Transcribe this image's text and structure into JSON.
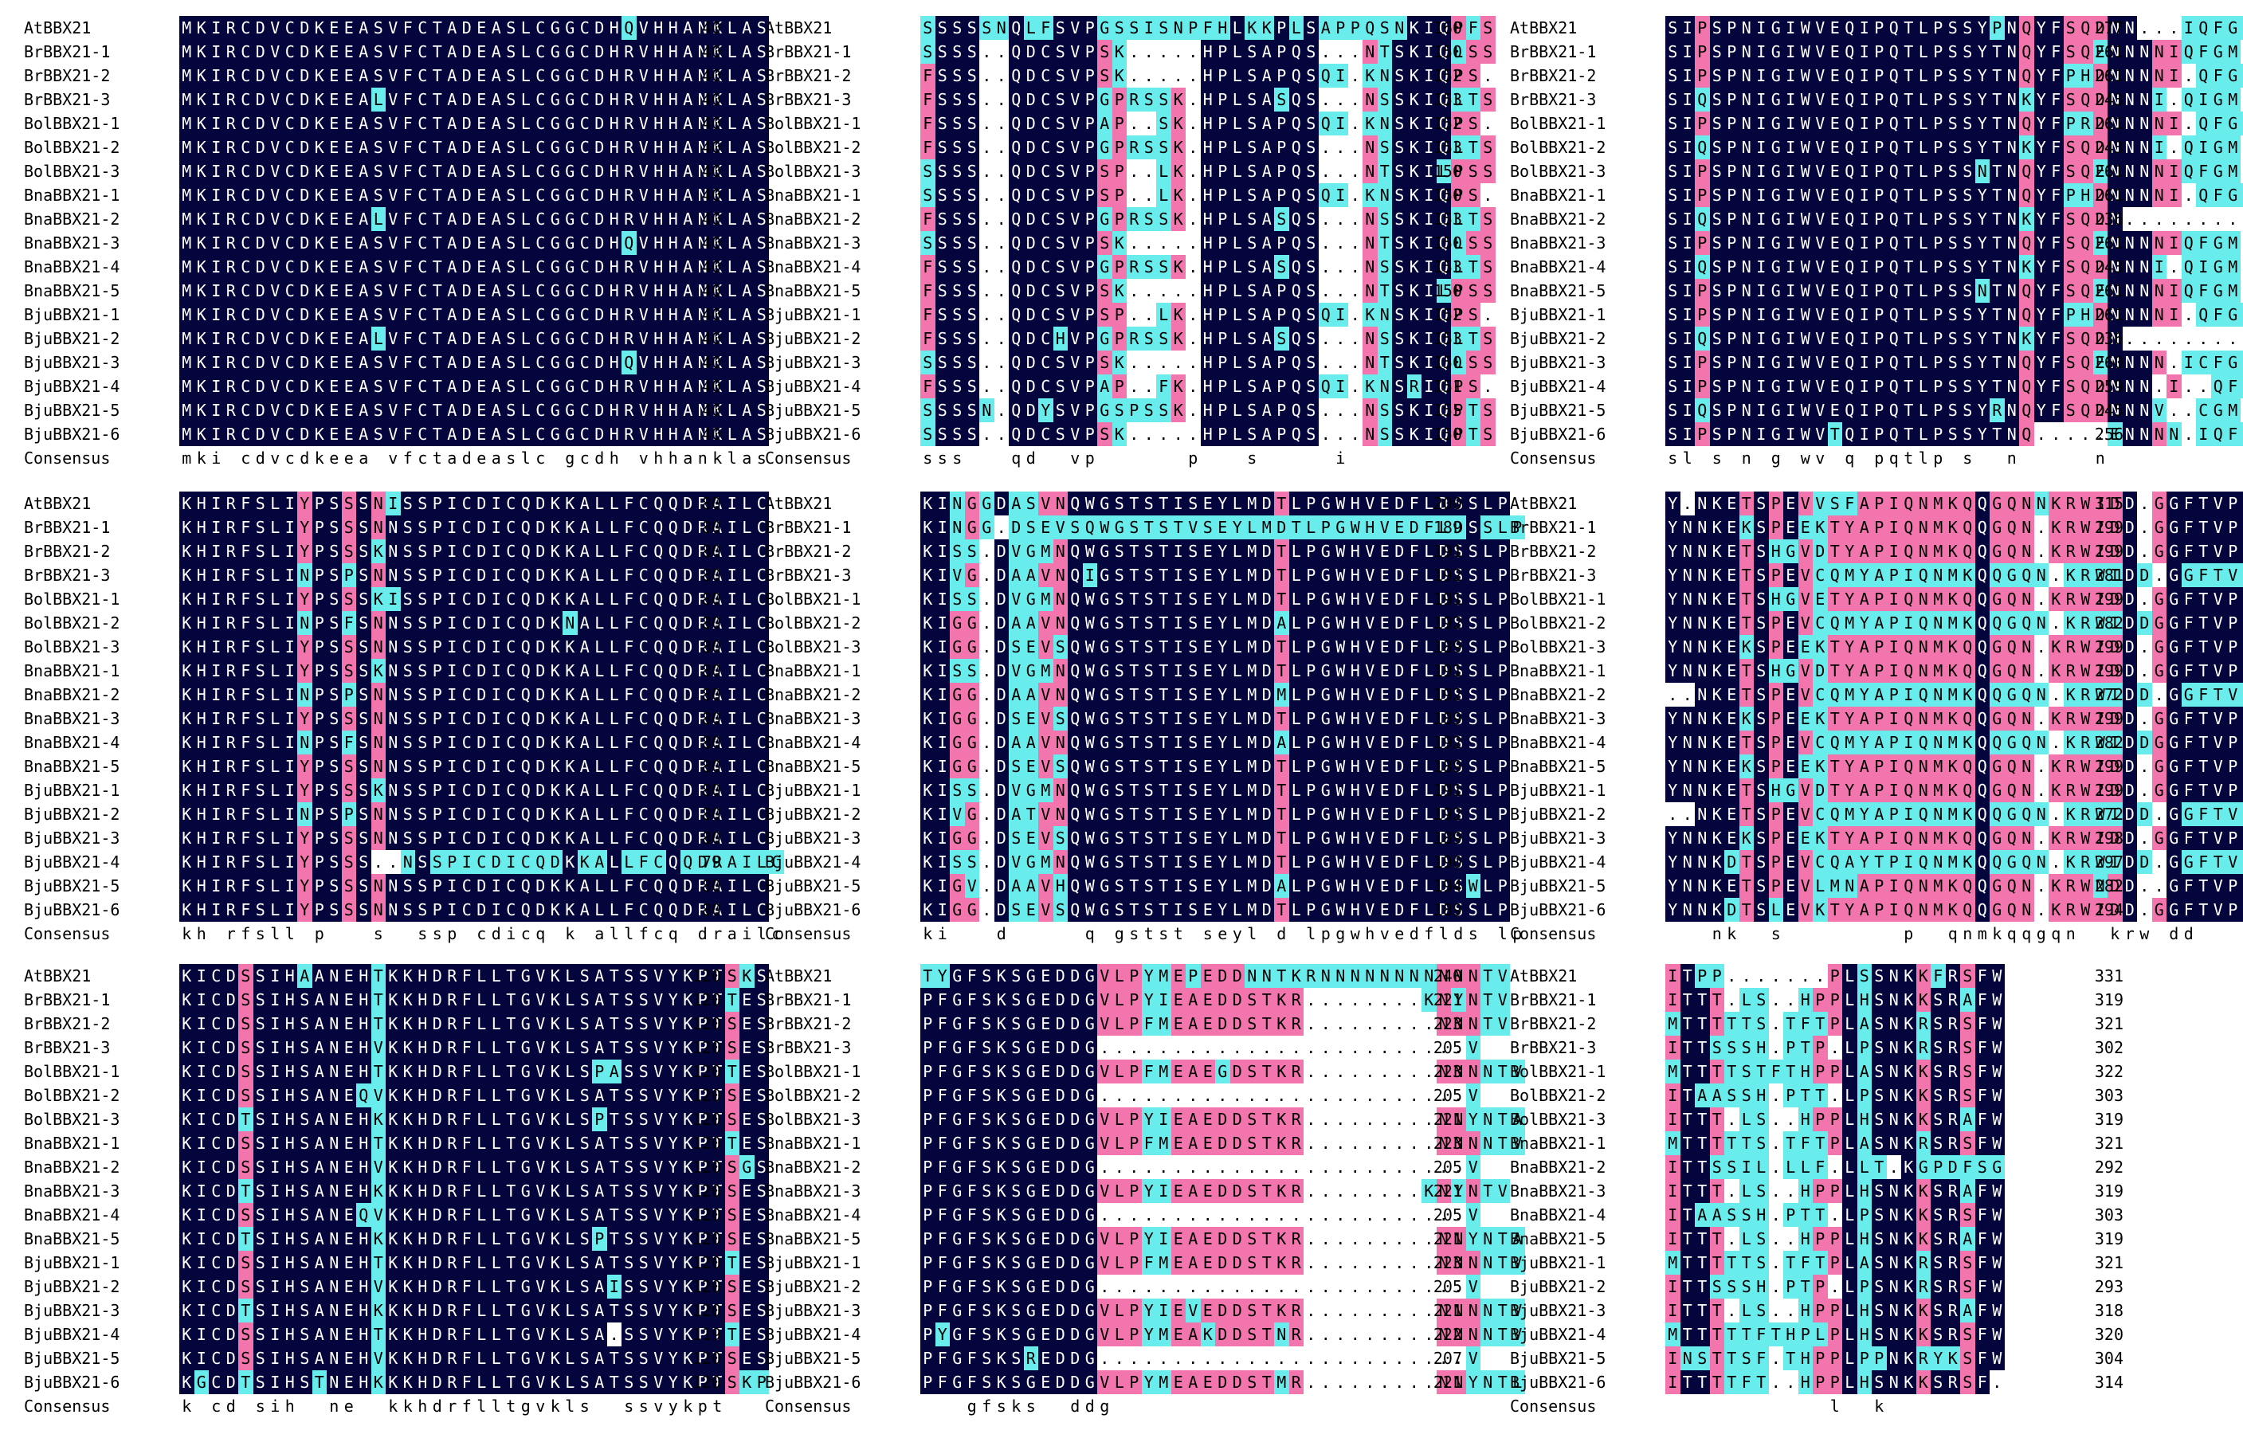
{
  "names": [
    "AtBBX21",
    "BrBBX21-1",
    "BrBBX21-2",
    "BrBBX21-3",
    "BolBBX21-1",
    "BolBBX21-2",
    "BolBBX21-3",
    "BnaBBX21-1",
    "BnaBBX21-2",
    "BnaBBX21-3",
    "BnaBBX21-4",
    "BnaBBX21-5",
    "BjuBBX21-1",
    "BjuBBX21-2",
    "BjuBBX21-3",
    "BjuBBX21-4",
    "BjuBBX21-5",
    "BjuBBX21-6"
  ],
  "consensus_label": "Consensus",
  "colors": {
    "identical": "#05053d",
    "high": "#f276ad",
    "low": "#69ecec"
  },
  "blocks": [
    {
      "seqs": [
        "MKIRCDVCDKEEASVFCTADEASLCGGCDHQVHHANKLAS",
        "MKIRCDVCDKEEASVFCTADEASLCGGCDHRVHHANKLAS",
        "MKIRCDVCDKEEASVFCTADEASLCGGCDHRVHHANKLAS",
        "MKIRCDVCDKEEALVFCTADEASLCGGCDHRVHHANKLAS",
        "MKIRCDVCDKEEASVFCTADEASLCGGCDHRVHHANKLAS",
        "MKIRCDVCDKEEASVFCTADEASLCGGCDHRVHHANKLAS",
        "MKIRCDVCDKEEASVFCTADEASLCGGCDHRVHHANKLAS",
        "MKIRCDVCDKEEASVFCTADEASLCGGCDHRVHHANKLAS",
        "MKIRCDVCDKEEALVFCTADEASLCGGCDHRVHHANKLAS",
        "MKIRCDVCDKEEASVFCTADEASLCGGCDHQVHHANKLAS",
        "MKIRCDVCDKEEASVFCTADEASLCGGCDHRVHHANKLAS",
        "MKIRCDVCDKEEASVFCTADEASLCGGCDHRVHHANKLAS",
        "MKIRCDVCDKEEASVFCTADEASLCGGCDHRVHHANKLAS",
        "MKIRCDVCDKEEALVFCTADEASLCGGCDHRVHHANKLAS",
        "MKIRCDVCDKEEASVFCTADEASLCGGCDHQVHHANKLAS",
        "MKIRCDVCDKEEASVFCTADEASLCGGCDHRVHHANKLAS",
        "MKIRCDVCDKEEASVFCTADEASLCGGCDHRVHHANKLAS",
        "MKIRCDVCDKEEASVFCTADEASLCGGCDHRVHHANKLAS"
      ],
      "nums": [
        "40",
        "40",
        "40",
        "40",
        "40",
        "40",
        "40",
        "40",
        "40",
        "40",
        "40",
        "40",
        "40",
        "40",
        "40",
        "40",
        "40",
        "40"
      ],
      "consensus": "mki cdvcdkeea vfctadeaslc gcdh vhhanklas"
    },
    {
      "seqs": [
        "SSSSSNQLFSVPGSSISNPFHLKKPLSAPPQSNKIQPFS",
        "SSSS..QDCSVPSK.....HPLSAPQS...NTSKIQLSS",
        "FSSS..QDCSVPSK.....HPLSAPQSQI.KNSKIQPS.",
        "FSSS..QDCSVPGPRSSK.HPLSASQS...NSSKIQLTS",
        "FSSS..QDCSVPAP..SK.HPLSAPQSQI.KNSKIQPS.",
        "FSSS..QDCSVPGPRSSK.HPLSAPQS...NSSKIQLTS",
        "SSSS..QDCSVPSP..LK.HPLSAPQS...NTSKILPSS",
        "SSSS..QDCSVPSP..LK.HPLSAPQSQI.KNSKIQPS.",
        "FSSS..QDCSVPGPRSSK.HPLSASQS...NSSKIQLTS",
        "SSSS..QDCSVPSK.....HPLSAPQS...NTSKIQLSS",
        "FSSS..QDCSVPGPRSSK.HPLSASQS...NSSKIQLTS",
        "FSSS..QDCSVPSK.....HPLSAPQS...NTSKILPSS",
        "FSSS..QDCSVPSP..LK.HPLSAPQSQI.KNSKIQPS.",
        "FSSS..QDCHVPGPRSSK.HPLSASQS...NSSKIQLTS",
        "SSSS..QDCSVPSK.....HPLSAPQS...NTSKIQLSS",
        "FSSS..QDCSVPAP..FK.HPLSAPQSQI.KNSRIQPS.",
        "SSSSN.QDYSVPGSPSSK.HPLSAPQS...NSSKIQPTS",
        "SSSS..QDCSVPSK.....HPLSAPQS...NSSKIQPTS"
      ],
      "nums": [
        "160",
        "150",
        "152",
        "153",
        "152",
        "153",
        "150",
        "150",
        "153",
        "150",
        "153",
        "150",
        "152",
        "153",
        "150",
        "151",
        "155",
        "150"
      ],
      "consensus": "sss   qd  vp      p   s     i  "
    },
    {
      "seqs": [
        "SIPSPNIGIWVEQIPQTLPSSYPNQYFSQDNN...IQFGM",
        "SIPSPNIGIWVEQIPQTLPSSYTNQYFSQENNNNIQFGM",
        "SIPSPNIGIWVEQIPQTLPSSYTNQYFPHDNNNNI.QFGM",
        "SIQSPNIGIWVEQIPQTLPSSYTNKYFSQDNNNI.QIGM",
        "SIPSPNIGIWVEQIPQTLPSSYTNQYFPRDNNNNI.QFGM",
        "SIQSPNIGIWVEQIPQTLPSSYTNKYFSQDNNNI.QIGM",
        "SIPSPNIGIWVEQIPQTLPSSNTNQYFSQENNNNIQFGM",
        "SIPSPNIGIWVEQIPQTLPSSYTNQYFPHDNNNNI.QFGM",
        "SIQSPNIGIWVEQIPQTLPSSYTNKYFSQDN.........",
        "SIPSPNIGIWVEQIPQTLPSSYTNQYFSQENNNNIQFGM",
        "SIQSPNIGIWVEQIPQTLPSSYTNKYFSQDNNNI.QIGM",
        "SIPSPNIGIWVEQIPQTLPSSNTNQYFSQENNNNIQFGM",
        "SIPSPNIGIWVEQIPQTLPSSYTNQYFPHDNNNNI.QFGM",
        "SIQSPNIGIWVEQIPQTLPSSYTNKYFSQDN.........",
        "SIPSPNIGIWVEQIPQTLPSSYTNQYFSQENNNN.ICFGM",
        "SIPSPNIGIWVEQIPQTLPSSYTNQYFSQDNNN.I..QFGI",
        "SIQSPNIGIWVEQIPQTLPSSYRNQYFSQDNNNV..CGM",
        "SIPSPNIGIWVTQIPQTLPSSYTNQ.....ENNNN.IQFNT"
      ],
      "nums": [
        "277",
        "261",
        "261",
        "243",
        "261",
        "243",
        "261",
        "261",
        "236",
        "261",
        "243",
        "261",
        "261",
        "236",
        "260",
        "259",
        "245",
        "256"
      ],
      "consensus": "sl s n g wv q pqtlp s  n     n"
    },
    {
      "seqs": [
        "KHIRFSLIYPSSSNISSPICDICQDKKALLFCQQDRAILC",
        "KHIRFSLIYPSSSNNSSPICDICQDKKALLFCQQDRAILC",
        "KHIRFSLIYPSSSKNSSPICDICQDKKALLFCQQDRAILC",
        "KHIRFSLINPSPSNNSSPICDICQDKKALLFCQQDRAILC",
        "KHIRFSLIYPSSSKISSPICDICQDKKALLFCQQDRAILC",
        "KHIRFSLINPSFSNNSSPICDICQDKNALLFCQQDRAILC",
        "KHIRFSLIYPSSSNNSSPICDICQDKKALLFCQQDRAILC",
        "KHIRFSLIYPSSSKNSSPICDICQDKKALLFCQQDRAILC",
        "KHIRFSLINPSPSNNSSPICDICQDKKALLFCQQDRAILC",
        "KHIRFSLIYPSSSNNSSPICDICQDKKALLFCQQDRAILC",
        "KHIRFSLINPSFSNNSSPICDICQDKKALLFCQQDRAILC",
        "KHIRFSLIYPSSSNNSSPICDICQDKKALLFCQQDRAILC",
        "KHIRFSLIYPSSSKNSSPICDICQDKKALLFCQQDRAILC",
        "KHIRFSLINPSPSNNSSPICDICQDKKALLFCQQDRAILC",
        "KHIRFSLIYPSSSNNSSPICDICQDKKALLFCQQDRAILC",
        "KHIRFSLIYPSSS..NSSPICDICQDKKALLFCQQDRAILC",
        "KHIRFSLIYPSSSNNSSPICDICQDKKALLFCQQDRAILC",
        "KHIRFSLIYPSSSNNSSPICDICQDKKALLFCQQDRAILC"
      ],
      "nums": [
        "80",
        "80",
        "80",
        "80",
        "80",
        "80",
        "80",
        "80",
        "80",
        "80",
        "80",
        "80",
        "80",
        "80",
        "80",
        "79",
        "80",
        "80"
      ],
      "consensus": "kh rfsll p   s  ssp cdicq k allfcq drailc"
    },
    {
      "seqs": [
        "KINGGDASVNQWGSTSTISEYLMDTLPGWHVEDFLDSSLP",
        "KINGG.DSEVSQWGSTSTVSEYLMDTLPGWHVEDFLDSSLP",
        "KISS.DVGMNQWGSTSTISEYLMDTLPGWHVEDFLDSSLP",
        "KIVG.DAAVNQIGSTSTISEYLMDTLPGWHVEDFLDSSLP",
        "KISS.DVGMNQWGSTSTISEYLMDTLPGWHVEDFLDSSLP",
        "KIGG.DAAVNQWGSTSTISEYLMDALPGWHVEDFLDSSLP",
        "KIGG.DSEVSQWGSTSTISEYLMDTLPGWHVEDFLDSSLP",
        "KISS.DVGMNQWGSTSTISEYLMDTLPGWHVEDFLDSSLP",
        "KIGG.DAAVNQWGSTSTISEYLMDMLPGWHVEDFLDSSLP",
        "KIGG.DSEVSQWGSTSTISEYLMDTLPGWHVEDFLDSSLP",
        "KIGG.DAAVNQWGSTSTISEYLMDALPGWHVEDFLDSSLP",
        "KIGG.DSEVSQWGSTSTISEYLMDTLPGWHVEDFLDSSLP",
        "KISS.DVGMNQWGSTSTISEYLMDTLPGWHVEDFLDSSLP",
        "KIVG.DATVNQWGSTSTISEYLMDTLPGWHVEDFLDSSLP",
        "KIGG.DSEVSQWGSTSTISEYLMDTLPGWHVEDFLDSSLP",
        "KISS.DVGMNQWGSTSTISEYLMDTLPGWHVEDFLDSSLP",
        "KIGV.DAAVHQWGSTSTISEYLMDALPGWHVEDFLDSWLP",
        "KIGG.DSEVSQWGSTSTISEYLMDTLPGWHVEDFLDSSLP"
      ],
      "nums": [
        "200",
        "189",
        "191",
        "192",
        "191",
        "192",
        "189",
        "191",
        "192",
        "189",
        "192",
        "189",
        "191",
        "192",
        "189",
        "190",
        "194",
        "189"
      ],
      "consensus": "ki   d     q gstst seyl d lpgwhvedflds lp"
    },
    {
      "seqs": [
        "Y.NKETSPEVVSFAPIQNMKQQGQNNKRWIDD.GGFTVPQ",
        "YNNKEKSPEEKTYAPIQNMKQQGQN.KRWIDD.GGFTVPQ",
        "YNNKETSHGVDTYAPIQNMKQQGQN.KRWIDD.GGFTVPQ",
        "YNNKETSPEVCQMYAPIQNMKQQGQN.KRWIDD.GGFTVPQ",
        "YNNKETSHGVETYAPIQNMKQQGQN.KRWIDD.GGFTVPQ",
        "YNNKETSPEVCQMYAPIQNMKQQGQN.KRWIDDGGFTVPQ",
        "YNNKEKSPEEKTYAPIQNMKQQGQN.KRWIDD.GGFTVPQ",
        "YNNKETSHGVDTYAPIQNMKQQGQN.KRWIDD.GGFTVPQ",
        "..NKETSPEVCQMYAPIQNMKQQGQN.KRWIDD.GGFTVPQ",
        "YNNKEKSPEEKTYAPIQNMKQQGQN.KRWIDD.GGFTVPQ",
        "YNNKETSPEVCQMYAPIQNMKQQGQN.KRWIDDGGFTVPQ",
        "YNNKEKSPEEKTYAPIQNMKQQGQN.KRWIDD.GGFTVPQ",
        "YNNKETSHGVDTYAPIQNMKQQGQN.KRWIDD.GGFTVPQ",
        "..NKETSPEVCQMYAPIQNMKQQGQN.KRWIDD.GGFTVPQ",
        "YNNKEKSPEEKTYAPIQNMKQQGQN.KRWIDD.GGFTVPQ",
        "YNNKDTSPEVCQAYTPIQNMKQQGQN.KRWIDD.GGFTVPQ",
        "YNNKETSPEVLMNAPIQNMKQQGQN.KRWNDD..GFTVPQ",
        "YNNKDTSLEVKTYAPIQNMKQQGQN.KRWIDD.GGFTVPQ"
      ],
      "nums": [
        "315",
        "299",
        "299",
        "281",
        "299",
        "282",
        "299",
        "299",
        "272",
        "299",
        "282",
        "299",
        "299",
        "272",
        "298",
        "297",
        "282",
        "294"
      ],
      "consensus": "   nk  s        p  qnmkqqgqn  krw dd   ftvpq"
    },
    {
      "seqs": [
        "KICDSSIHAANEHTKKHDRFLLTGVKLSATSSVYKPTSKS",
        "KICDSSIHSANEHTKKHDRFLLTGVKLSATSSVYKPTTES",
        "KICDSSIHSANEHTKKHDRFLLTGVKLSATSSVYKPTSES",
        "KICDSSIHSANEHVKKHDRFLLTGVKLSATSSVYKPTSES",
        "KICDSSIHSANEHTKKHDRFLLTGVKLSPASSVYKPTTES",
        "KICDSSIHSANEQVKKHDRFLLTGVKLSATSSVYKPTSES",
        "KICDTSIHSANEHKKKHDRFLLTGVKLSPTSSVYKPTSES",
        "KICDSSIHSANEHTKKHDRFLLTGVKLSATSSVYKPTTES",
        "KICDSSIHSANEHVKKHDRFLLTGVKLSATSSVYKPTSGS",
        "KICDTSIHSANEHKKKHDRFLLTGVKLSATSSVYKPTSES",
        "KICDSSIHSANEQVKKHDRFLLTGVKLSATSSVYKPTSES",
        "KICDTSIHSANEHKKKHDRFLLTGVKLSPTSSVYKPTSES",
        "KICDSSIHSANEHTKKHDRFLLTGVKLSATSSVYKPTTES",
        "KICDSSIHSANEHVKKHDRFLLTGVKLSAISSVYKPTSES",
        "KICDTSIHSANEHKKKHDRFLLTGVKLSATSSVYKPTSES",
        "KICDSSIHSANEHTKKHDRFLLTGVKLSA.SSVYKPTTES",
        "KICDSSIHSANEHVKKHDRFLLTGVKLSATSSVYKPTSES",
        "KGCDTSIHSTNEHKKKHDRFLLTGVKLSATSSVYKPTSKP"
      ],
      "nums": [
        "120",
        "120",
        "120",
        "120",
        "120",
        "120",
        "120",
        "120",
        "120",
        "120",
        "120",
        "120",
        "120",
        "120",
        "120",
        "119",
        "120",
        "120"
      ],
      "consensus": "k cd sih  ne  kkhdrflltgvkls  ssvykpt"
    },
    {
      "seqs": [
        "TYGFSKSGEDDGVLPYMEPEDDNNTKRNNNNNNNNNNNTV",
        "PFGFSKSGEDDGVLPYIEAEDDSTKR........KNYNTV",
        "PFGFSKSGEDDGVLPFMEAEDDSTKR.........NNNTV",
        "PFGFSKSGEDDG.........................V",
        "PFGFSKSGEDDGVLPFMEAEGDSTKR.........NNNNTV",
        "PFGFSKSGEDDG.........................V",
        "PFGFSKSGEDDGVLPYIEAEDDSTKR.........NNYNTA",
        "PFGFSKSGEDDGVLPFMEAEDDSTKR.........NNNNTV",
        "PFGFSKSGEDDG.........................V",
        "PFGFSKSGEDDGVLPYIEAEDDSTKR........KNYNTV",
        "PFGFSKSGEDDG.........................V",
        "PFGFSKSGEDDGVLPYIEAEDDSTKR.........NNYNTA",
        "PFGFSKSGEDDGVLPFMEAEDDSTKR.........NNNNTV",
        "PFGFSKSGEDDG.........................V",
        "PFGFSKSGEDDGVLPYIEVEDDSTKR.........NNNNTV",
        "PYGFSKSGEDDGVLPYMEAKDDSTNR.........NNNNTV",
        "PFGFSKSREDDG.........................V",
        "PFGFSKSGEDDGVLPYMEAEDDSTMR.........NNYNTL"
      ],
      "nums": [
        "240",
        "221",
        "223",
        "205",
        "223",
        "205",
        "221",
        "223",
        "205",
        "221",
        "205",
        "221",
        "223",
        "205",
        "221",
        "222",
        "207",
        "221"
      ],
      "consensus": "   gfsks  ddg"
    },
    {
      "seqs": [
        "ITPP.......PLSSNKKFRSFW",
        "ITTT.LS..HPPLHSNKKSRAFW",
        "MTTTTTS.TFTPLASNKRSRSFW",
        "ITTSSSH.PTP.LPSNKRSRSFW",
        "MTTTTSTFTHPPLASNKKSRSFW",
        "ITAASSH.PTT.LPSNKKSRSFW",
        "ITTT.LS..HPPLHSNKKSRAFW",
        "MTTTTTS.TFTPLASNKRSRSFW",
        "ITTSSIL.LLF.LLT.KGPDFSG",
        "ITTT.LS..HPPLHSNKKSRAFW",
        "ITAASSH.PTT.LPSNKKSRSFW",
        "ITTT.LS..HPPLHSNKKSRAFW",
        "MTTTTTS.TFTPLASNKRSRSFW",
        "ITTSSSH.PTP.LPSNKRSRSFW",
        "ITTT.LS..HPPLHSNKKSRAFW",
        "MTTTTTFTHPLPLHSNKKSRSFW",
        "INSTTSF.THPPLPPNKRYKSFW",
        "ITTTTFT..HPPLHSNKKSRSF."
      ],
      "nums": [
        "331",
        "319",
        "321",
        "302",
        "322",
        "303",
        "319",
        "321",
        "292",
        "319",
        "303",
        "319",
        "321",
        "293",
        "318",
        "320",
        "304",
        "314"
      ],
      "consensus": "           l  k"
    }
  ]
}
